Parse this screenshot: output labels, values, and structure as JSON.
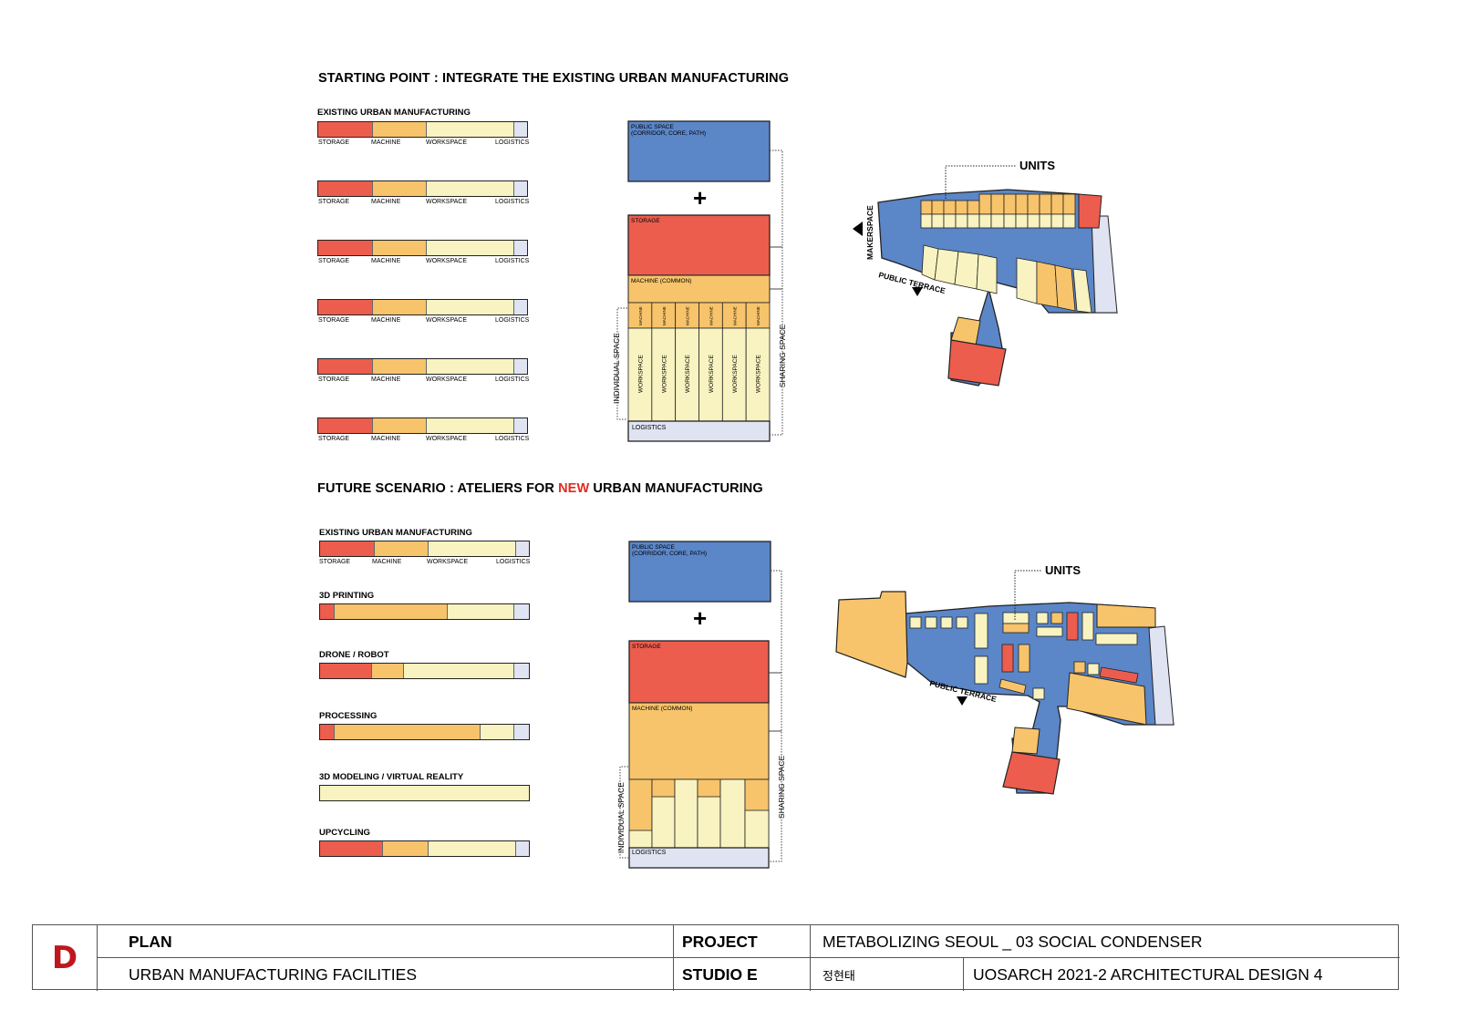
{
  "section1": {
    "heading": "STARTING POINT : INTEGRATE THE EXISTING URBAN MANUFACTURING",
    "bar_title": "EXISTING URBAN MANUFACTURING",
    "sublabels": [
      "STORAGE",
      "MACHINE",
      "WORKSPACE",
      "LOGISTICS"
    ],
    "bar_fractions": [
      0.26,
      0.26,
      0.42,
      0.06
    ],
    "bar_count": 6,
    "stack": {
      "public_label_1": "PUBLIC SPACE",
      "public_label_2": "(CORRIDOR, CORE, PATH)",
      "plus": "+",
      "storage_label": "STORAGE",
      "machine_label": "MACHINE (COMMON)",
      "unit_machine": "MACHINE",
      "unit_workspace": "WORKSPACE",
      "logistics_label": "LOGISTICS",
      "individual_space": "INDIVIDUAL SPACE",
      "sharing_space": "SHARING SPACE"
    },
    "plan": {
      "units_label": "UNITS",
      "makerspace_label": "MAKERSPACE",
      "terrace_label": "PUBLIC TERRACE"
    }
  },
  "section2": {
    "heading_before": "FUTURE SCENARIO : ATELIERS FOR ",
    "heading_highlight": "NEW",
    "heading_after": " URBAN MANUFACTURING",
    "bars": [
      {
        "label": "EXISTING URBAN MANUFACTURING",
        "fractions": [
          0.26,
          0.26,
          0.42,
          0.06
        ],
        "sublabels": [
          "STORAGE",
          "MACHINE",
          "WORKSPACE",
          "LOGISTICS"
        ]
      },
      {
        "label": "3D PRINTING",
        "fractions": [
          0.07,
          0.54,
          0.32,
          0.07
        ]
      },
      {
        "label": "DRONE  / ROBOT",
        "fractions": [
          0.25,
          0.15,
          0.53,
          0.07
        ]
      },
      {
        "label": "PROCESSING",
        "fractions": [
          0.07,
          0.7,
          0.16,
          0.07
        ]
      },
      {
        "label": "3D MODELING / VIRTUAL REALITY",
        "fractions": [
          0,
          0,
          1.0,
          0
        ]
      },
      {
        "label": "UPCYCLING",
        "fractions": [
          0.3,
          0.22,
          0.42,
          0.06
        ]
      }
    ],
    "stack": {
      "public_label_1": "PUBLIC SPACE",
      "public_label_2": "(CORRIDOR, CORE, PATH)",
      "plus": "+",
      "storage_label": "STORAGE",
      "machine_label": "MACHINE (COMMON)",
      "logistics_label": "LOGISTICS",
      "individual_space": "INDIVIDUAL SPACE",
      "sharing_space": "SHARING SPACE"
    },
    "plan": {
      "units_label": "UNITS",
      "terrace_label": "PUBLIC TERRACE"
    }
  },
  "colors": {
    "storage": "#ec5d4e",
    "machine": "#f7c46b",
    "workspace": "#f8f3c0",
    "logistics": "#dfe3f2",
    "public": "#5b86c8",
    "accent": "#e02b1e",
    "logo": "#c0171f"
  },
  "title_block": {
    "logo": "D",
    "plan_label": "PLAN",
    "plan_subtitle": "URBAN MANUFACTURING FACILITIES",
    "project_label": "PROJECT",
    "project_value": "METABOLIZING SEOUL _ 03 SOCIAL CONDENSER",
    "studio_label": "STUDIO E",
    "author": "정현태",
    "course": "UOSARCH 2021-2 ARCHITECTURAL DESIGN 4"
  }
}
